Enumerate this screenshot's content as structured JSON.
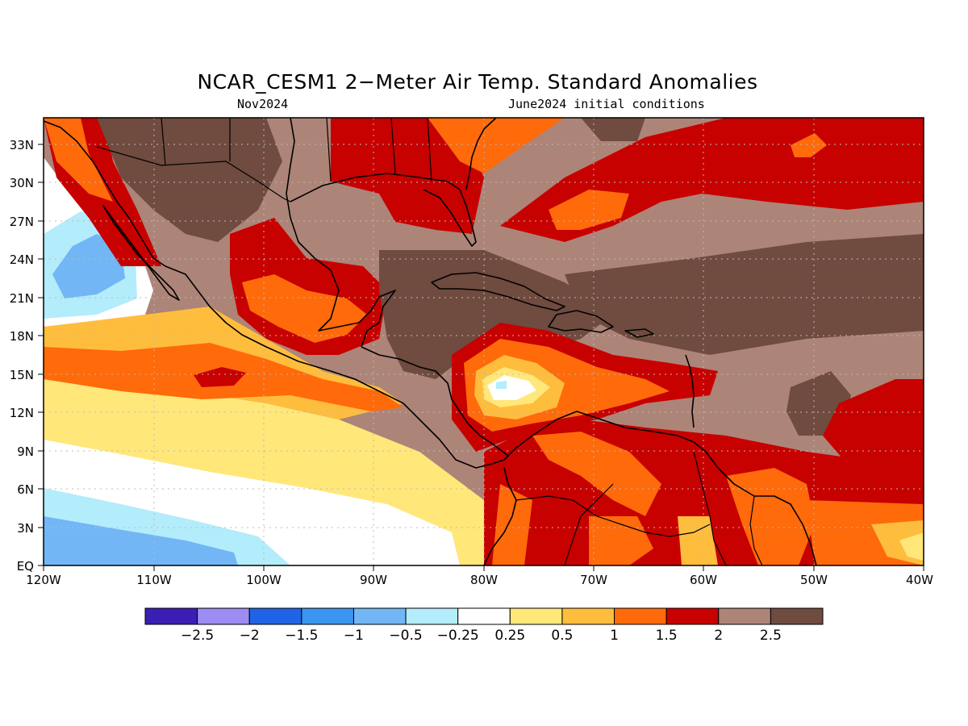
{
  "title": "NCAR_CESM1 2−Meter Air Temp. Standard Anomalies",
  "valid_month": "Nov2024",
  "initial_conditions": "June2024 initial conditions",
  "lat_labels": [
    "EQ",
    "3N",
    "6N",
    "9N",
    "12N",
    "15N",
    "18N",
    "21N",
    "24N",
    "27N",
    "30N",
    "33N"
  ],
  "lon_labels": [
    "120W",
    "110W",
    "100W",
    "90W",
    "80W",
    "70W",
    "60W",
    "50W",
    "40W"
  ],
  "colorbar": {
    "labels": [
      "−2.5",
      "−2",
      "−1.5",
      "−1",
      "−0.5",
      "−0.25",
      "0.25",
      "0.5",
      "1",
      "1.5",
      "2",
      "2.5"
    ],
    "colors": [
      "#3b1fb5",
      "#9d8cf2",
      "#1f64e6",
      "#3a96f0",
      "#72b6f5",
      "#b3ecfb",
      "#ffffff",
      "#ffe77a",
      "#ffbd3d",
      "#ff6a0b",
      "#c70000",
      "#ad8478",
      "#6f4b40"
    ]
  },
  "chart_data": {
    "type": "heatmap",
    "variable": "2-Meter Air Temp. Standard Anomalies",
    "model": "NCAR_CESM1",
    "lon_range": [
      -120,
      -40
    ],
    "lat_range": [
      0,
      35
    ],
    "levels": [
      -2.5,
      -2,
      -1.5,
      -1,
      -0.5,
      -0.25,
      0.25,
      0.5,
      1,
      1.5,
      2,
      2.5
    ]
  }
}
